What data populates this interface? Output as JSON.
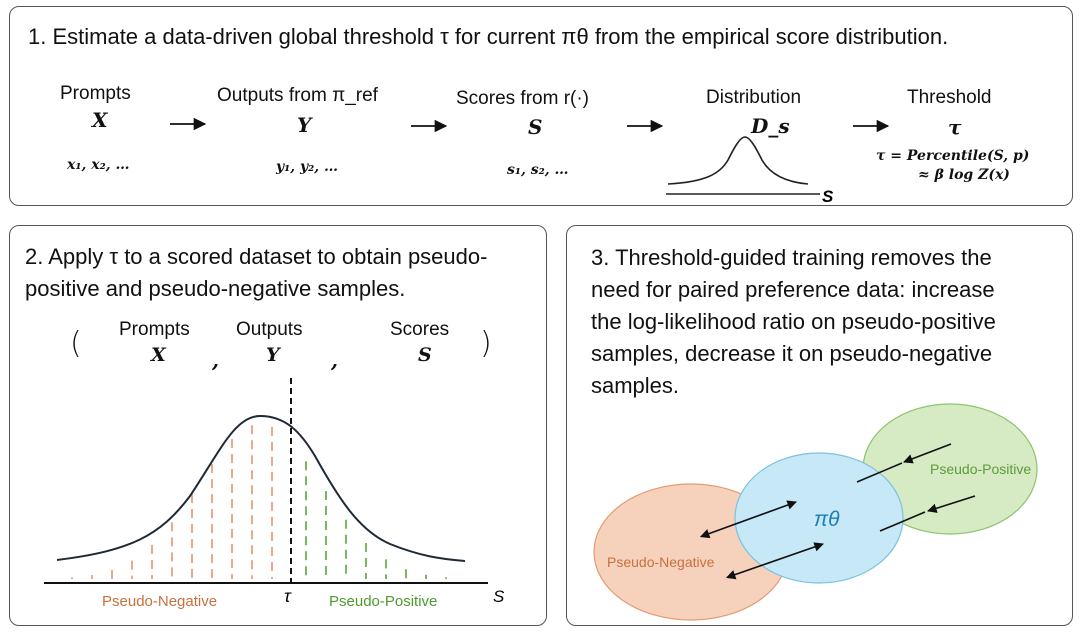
{
  "panel1": {
    "title": "1. Estimate a data-driven global threshold τ for current πθ from the empirical score distribution.",
    "stages": [
      {
        "label": "Prompts",
        "symbol": "X",
        "samples": "x₁, x₂, …"
      },
      {
        "label": "Outputs from π_ref",
        "symbol": "Y",
        "samples": "y₁, y₂, …"
      },
      {
        "label": "Scores from r(·)",
        "symbol": "S",
        "samples": "s₁, s₂, …"
      },
      {
        "label": "Distribution",
        "symbol": "D_s",
        "axis": "S"
      },
      {
        "label": "Threshold",
        "symbol": "τ",
        "formula1": "τ = Percentile(S, p)",
        "formula2": "≈ β log Z(x)"
      }
    ]
  },
  "panel2": {
    "title_line1": "2. Apply τ to a scored dataset to obtain pseudo-",
    "title_line2": "positive and pseudo-negative samples.",
    "tuple": {
      "open": "(",
      "close": ")",
      "comma": ",",
      "items": [
        {
          "label": "Prompts",
          "symbol": "X"
        },
        {
          "label": "Outputs",
          "symbol": "Y"
        },
        {
          "label": "Scores",
          "symbol": "S"
        }
      ]
    },
    "neg_label": "Pseudo-Negative",
    "pos_label": "Pseudo-Positive",
    "tau_label": "τ",
    "axis_label": "S",
    "neg_color": "#e8a07a",
    "pos_color": "#6ab04c"
  },
  "panel3": {
    "lines": [
      "3. Threshold-guided training removes the",
      "need for paired preference data: increase",
      "the log-likelihood ratio on pseudo-positive",
      "samples, decrease it on pseudo-negative",
      "samples."
    ],
    "neg_label": "Pseudo-Negative",
    "pos_label": "Pseudo-Positive",
    "policy_label": "πθ",
    "neg_fill": "#f6d2bd",
    "pos_fill": "#d6ebc4",
    "policy_fill": "#c6e8f7",
    "policy_text_color": "#1e7fb5"
  }
}
